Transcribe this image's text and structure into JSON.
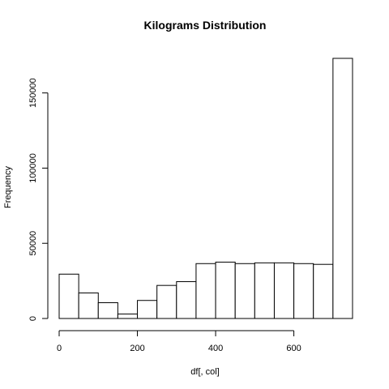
{
  "chart_data": {
    "type": "bar",
    "title": "Kilograms  Distribution",
    "xlabel": "df[, col]",
    "ylabel": "Frequency",
    "bin_width": 50,
    "bins": [
      {
        "start": 0,
        "end": 50,
        "value": 29500
      },
      {
        "start": 50,
        "end": 100,
        "value": 17000
      },
      {
        "start": 100,
        "end": 150,
        "value": 10500
      },
      {
        "start": 150,
        "end": 200,
        "value": 3000
      },
      {
        "start": 200,
        "end": 250,
        "value": 12000
      },
      {
        "start": 250,
        "end": 300,
        "value": 22000
      },
      {
        "start": 300,
        "end": 350,
        "value": 24500
      },
      {
        "start": 350,
        "end": 400,
        "value": 36500
      },
      {
        "start": 400,
        "end": 450,
        "value": 37500
      },
      {
        "start": 450,
        "end": 500,
        "value": 36500
      },
      {
        "start": 500,
        "end": 550,
        "value": 37000
      },
      {
        "start": 550,
        "end": 600,
        "value": 37000
      },
      {
        "start": 600,
        "end": 650,
        "value": 36500
      },
      {
        "start": 650,
        "end": 700,
        "value": 36000
      },
      {
        "start": 700,
        "end": 750,
        "value": 173000
      }
    ],
    "x_ticks": [
      {
        "value": 0,
        "label": "0"
      },
      {
        "value": 200,
        "label": "200"
      },
      {
        "value": 400,
        "label": "400"
      },
      {
        "value": 600,
        "label": "600"
      }
    ],
    "y_ticks": [
      {
        "value": 0,
        "label": "0"
      },
      {
        "value": 50000,
        "label": "50000"
      },
      {
        "value": 100000,
        "label": "100000"
      },
      {
        "value": 150000,
        "label": "150000"
      }
    ],
    "xlim": [
      0,
      750
    ],
    "ylim": [
      0,
      173000
    ],
    "grid": false,
    "legend": "none"
  }
}
